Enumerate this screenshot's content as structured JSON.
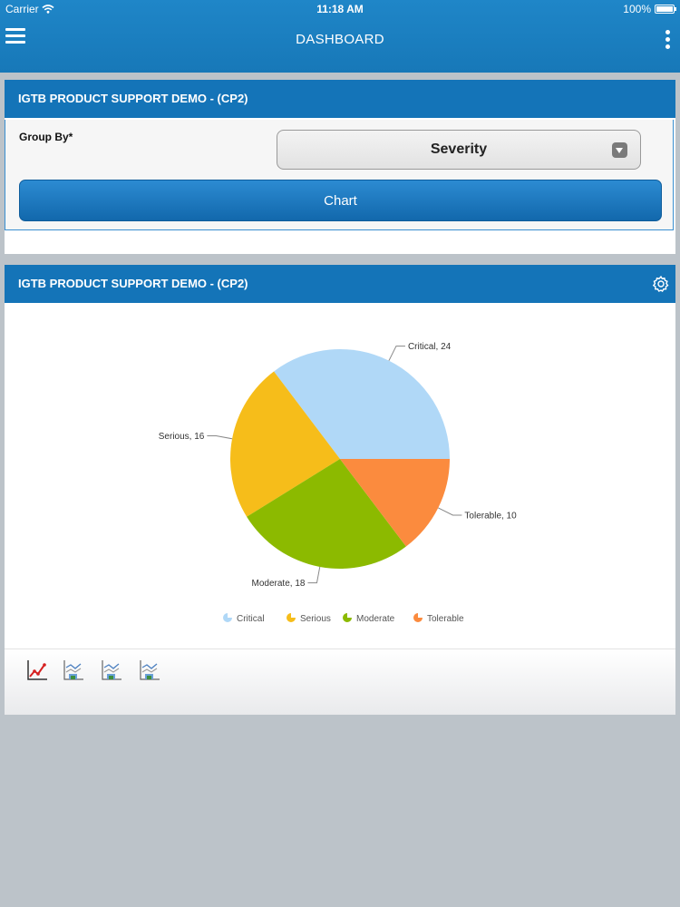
{
  "status_bar": {
    "carrier": "Carrier",
    "time": "11:18 AM",
    "battery": "100%",
    "battery_level": 1.0
  },
  "header": {
    "title": "DASHBOARD",
    "menu_icon": "hamburger-menu-icon",
    "overflow_icon": "vertical-dots-icon"
  },
  "filter_card": {
    "title": "IGTB PRODUCT SUPPORT DEMO - (CP2)",
    "group_by_label": "Group By*",
    "group_by_value": "Severity",
    "chart_button": "Chart"
  },
  "chart_card": {
    "title": "IGTB PRODUCT SUPPORT DEMO - (CP2)",
    "settings_icon": "gear-icon",
    "toolbar_icons": [
      "line-chart-icon",
      "chart-export-icon",
      "chart-export-icon",
      "chart-export-icon"
    ]
  },
  "chart_data": {
    "type": "pie",
    "title": "",
    "categories": [
      "Critical",
      "Serious",
      "Moderate",
      "Tolerable"
    ],
    "values": [
      24,
      16,
      18,
      10
    ],
    "data_labels": [
      "Critical, 24",
      "Serious, 16",
      "Moderate, 18",
      "Tolerable, 10"
    ],
    "colors": [
      "#b0d8f7",
      "#f6bd1a",
      "#8cba00",
      "#fb8b3e"
    ],
    "legend": "bottom"
  },
  "colors": {
    "header_blue": "#1778b8",
    "card_head_blue": "#1474b8",
    "background": "#bcc3c9"
  }
}
